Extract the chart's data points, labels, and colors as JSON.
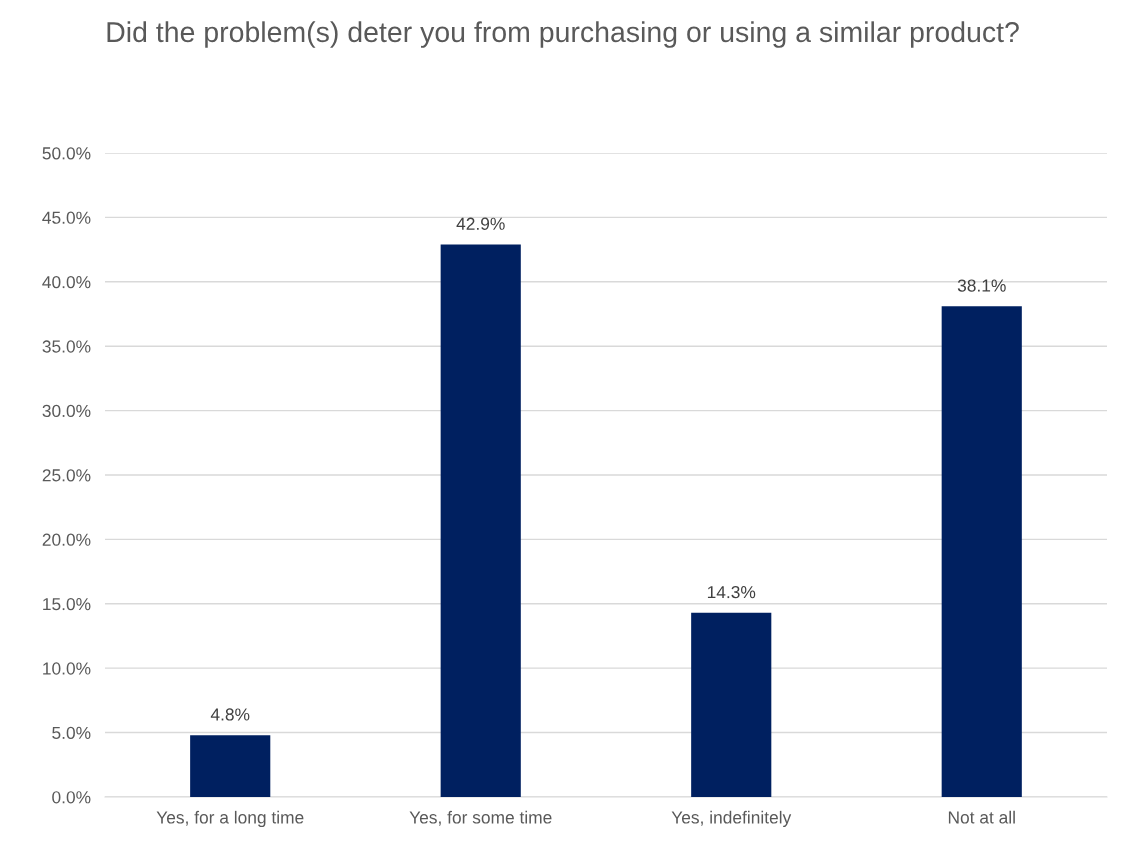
{
  "chart_data": {
    "type": "bar",
    "title": "Did the problem(s) deter you from purchasing or using a similar product?",
    "categories": [
      "Yes, for a long time",
      "Yes, for some time",
      "Yes, indefinitely",
      "Not at all"
    ],
    "values": [
      4.8,
      42.9,
      14.3,
      38.1
    ],
    "value_labels": [
      "4.8%",
      "42.9%",
      "14.3%",
      "38.1%"
    ],
    "color": "#002060",
    "ylim": [
      0,
      50
    ],
    "yticks": [
      {
        "value": 0,
        "label": "0.0%"
      },
      {
        "value": 5,
        "label": "5.0%"
      },
      {
        "value": 10,
        "label": "10.0%"
      },
      {
        "value": 15,
        "label": "15.0%"
      },
      {
        "value": 20,
        "label": "20.0%"
      },
      {
        "value": 25,
        "label": "25.0%"
      },
      {
        "value": 30,
        "label": "30.0%"
      },
      {
        "value": 35,
        "label": "35.0%"
      },
      {
        "value": 40,
        "label": "40.0%"
      },
      {
        "value": 45,
        "label": "45.0%"
      },
      {
        "value": 50,
        "label": "50.0%"
      }
    ],
    "grid": "y",
    "legend": false
  }
}
